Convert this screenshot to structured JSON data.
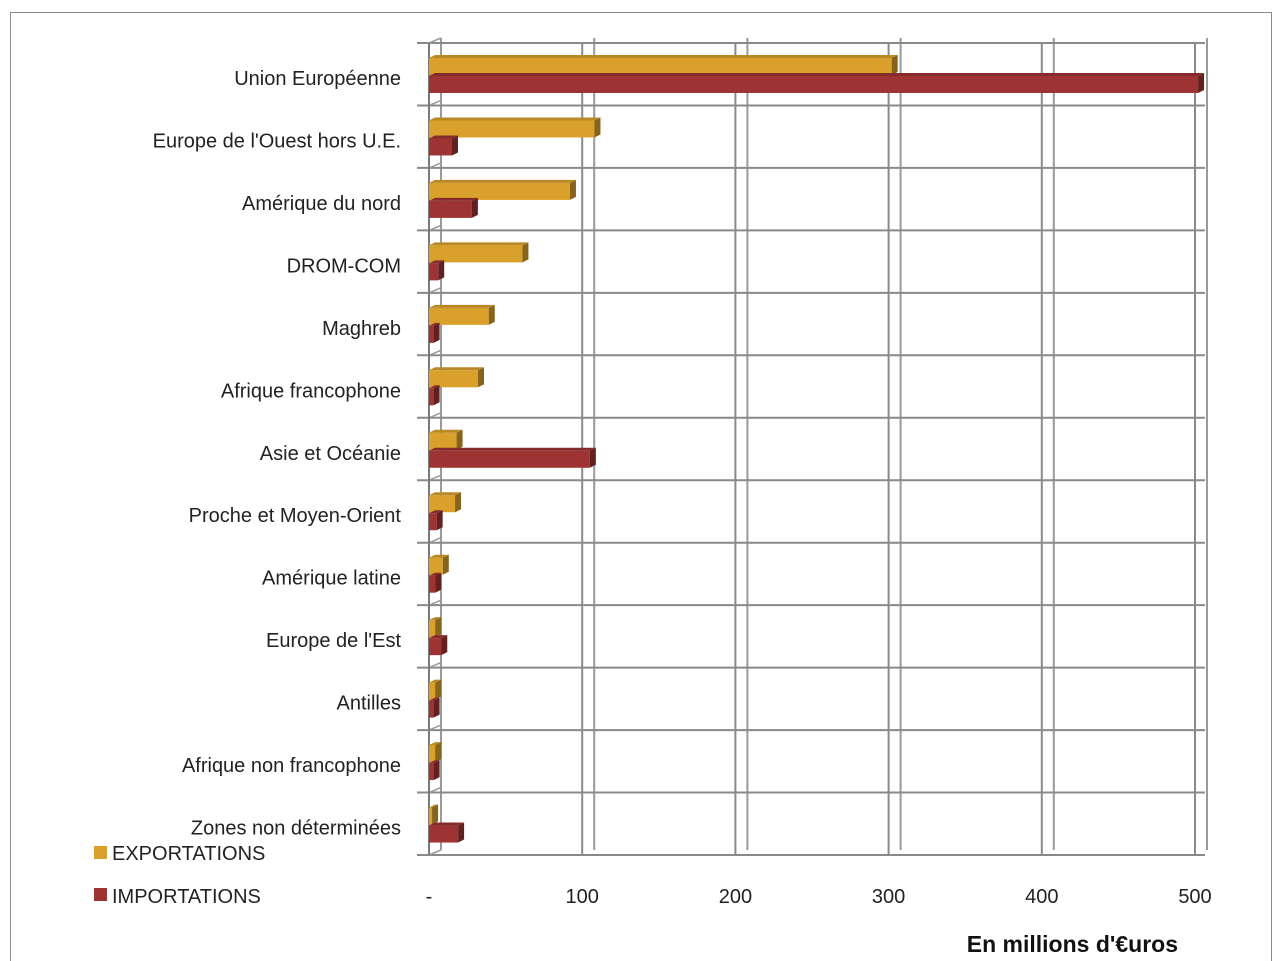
{
  "chart_data": {
    "type": "bar",
    "orientation": "horizontal",
    "categories": [
      "Union Européenne",
      "Europe de l'Ouest hors U.E.",
      "Amérique du nord",
      "DROM-COM",
      "Maghreb",
      "Afrique francophone",
      "Asie et Océanie",
      "Proche et Moyen-Orient",
      "Amérique latine",
      "Europe de l'Est",
      "Antilles",
      "Afrique non francophone",
      "Zones non  déterminées"
    ],
    "series": [
      {
        "name": "EXPORTATIONS",
        "color": "#D9A12B",
        "values": [
          302,
          108,
          92,
          61,
          39,
          32,
          18,
          17,
          9,
          4,
          4,
          4,
          2
        ]
      },
      {
        "name": "IMPORTATIONS",
        "color": "#9E3333",
        "values": [
          502,
          15,
          28,
          6,
          3,
          3,
          105,
          5,
          4,
          8,
          3,
          3,
          19
        ]
      }
    ],
    "xticks": [
      "-",
      "100",
      "200",
      "300",
      "400",
      "500"
    ],
    "xlim": [
      0,
      500
    ],
    "xlabel": "En millions d'€uros",
    "grid": true,
    "legend": "bottom-left"
  }
}
